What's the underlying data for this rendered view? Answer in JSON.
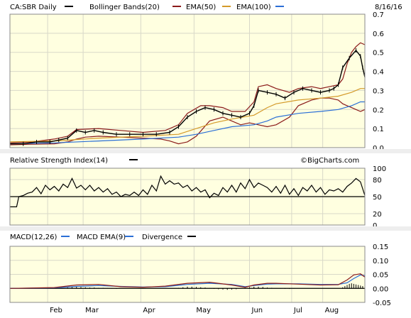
{
  "chart_data": [
    {
      "type": "line",
      "title": "CA:SBR Daily",
      "date_label": "8/16/16",
      "legend": [
        {
          "name": "Bollinger Bands(20)",
          "color": "#8b1a1a"
        },
        {
          "name": "EMA(50)",
          "color": "#d49a2a"
        },
        {
          "name": "EMA(100)",
          "color": "#2b6fd6"
        }
      ],
      "legend_swatches": {
        "price": "#000000"
      },
      "y_ticks": [
        "0.7",
        "0.6",
        "0.5",
        "0.4",
        "0.3",
        "0.2",
        "0.1",
        "0.0"
      ],
      "ylim": [
        0,
        0.7
      ],
      "x_ticks": [
        "Feb",
        "Mar",
        "Apr",
        "May",
        "Jun",
        "Jul",
        "Aug"
      ],
      "background": "#ffffe0",
      "series": [
        {
          "name": "CA:SBR",
          "color": "#000000",
          "x": [
            0,
            6,
            12,
            18,
            22,
            26,
            30,
            34,
            38,
            42,
            48,
            54,
            60,
            66,
            72,
            76,
            80,
            84,
            88,
            92,
            96,
            100,
            104,
            108,
            110,
            112,
            116,
            120,
            124,
            128,
            132,
            136,
            140,
            144,
            146,
            148,
            150,
            153,
            156,
            158,
            159,
            160
          ],
          "y": [
            0.02,
            0.02,
            0.03,
            0.03,
            0.04,
            0.05,
            0.09,
            0.08,
            0.09,
            0.08,
            0.07,
            0.07,
            0.07,
            0.07,
            0.08,
            0.11,
            0.16,
            0.19,
            0.21,
            0.2,
            0.18,
            0.17,
            0.16,
            0.18,
            0.22,
            0.3,
            0.29,
            0.28,
            0.26,
            0.29,
            0.31,
            0.3,
            0.29,
            0.3,
            0.31,
            0.33,
            0.42,
            0.47,
            0.51,
            0.48,
            0.42,
            0.37
          ]
        },
        {
          "name": "Bollinger Upper",
          "color": "#8b1a1a",
          "x": [
            0,
            10,
            20,
            26,
            30,
            40,
            50,
            60,
            70,
            76,
            80,
            86,
            90,
            96,
            100,
            106,
            110,
            112,
            116,
            120,
            126,
            130,
            136,
            140,
            144,
            148,
            150,
            152,
            154,
            156,
            158,
            160
          ],
          "y": [
            0.025,
            0.03,
            0.045,
            0.06,
            0.095,
            0.1,
            0.09,
            0.08,
            0.09,
            0.12,
            0.18,
            0.22,
            0.22,
            0.21,
            0.19,
            0.19,
            0.24,
            0.32,
            0.33,
            0.31,
            0.29,
            0.31,
            0.32,
            0.31,
            0.32,
            0.33,
            0.36,
            0.44,
            0.5,
            0.53,
            0.55,
            0.54
          ]
        },
        {
          "name": "Bollinger Lower",
          "color": "#8b1a1a",
          "x": [
            0,
            10,
            20,
            26,
            30,
            34,
            40,
            50,
            60,
            68,
            72,
            76,
            80,
            84,
            90,
            96,
            100,
            104,
            108,
            112,
            116,
            120,
            126,
            130,
            136,
            140,
            144,
            148,
            150,
            152,
            154,
            156,
            158,
            160
          ],
          "y": [
            0.015,
            0.018,
            0.02,
            0.03,
            0.045,
            0.055,
            0.06,
            0.055,
            0.05,
            0.045,
            0.035,
            0.02,
            0.03,
            0.06,
            0.14,
            0.16,
            0.14,
            0.12,
            0.13,
            0.12,
            0.11,
            0.12,
            0.16,
            0.22,
            0.25,
            0.26,
            0.26,
            0.25,
            0.23,
            0.22,
            0.21,
            0.2,
            0.19,
            0.2
          ]
        },
        {
          "name": "EMA(50)",
          "color": "#d49a2a",
          "x": [
            0,
            20,
            40,
            60,
            76,
            84,
            92,
            100,
            110,
            116,
            120,
            130,
            140,
            148,
            154,
            158,
            160
          ],
          "y": [
            0.03,
            0.035,
            0.05,
            0.06,
            0.07,
            0.1,
            0.13,
            0.15,
            0.17,
            0.21,
            0.23,
            0.25,
            0.26,
            0.27,
            0.29,
            0.31,
            0.31
          ]
        },
        {
          "name": "EMA(100)",
          "color": "#2b6fd6",
          "x": [
            0,
            20,
            40,
            60,
            76,
            84,
            92,
            100,
            110,
            116,
            120,
            130,
            140,
            148,
            154,
            158,
            160
          ],
          "y": [
            0.02,
            0.025,
            0.035,
            0.045,
            0.055,
            0.07,
            0.09,
            0.11,
            0.12,
            0.14,
            0.16,
            0.18,
            0.19,
            0.2,
            0.22,
            0.24,
            0.24
          ]
        }
      ]
    },
    {
      "type": "line",
      "title": "Relative Strength Index(14)",
      "watermark": "©BigCharts.com",
      "y_ticks": [
        "100",
        "80",
        "50",
        "20",
        "0"
      ],
      "ylim": [
        0,
        100
      ],
      "reference_line": 50,
      "series": [
        {
          "name": "RSI",
          "color": "#000000",
          "x": [
            0,
            3,
            4,
            6,
            8,
            10,
            12,
            14,
            16,
            18,
            20,
            22,
            24,
            26,
            28,
            30,
            32,
            34,
            36,
            38,
            40,
            42,
            44,
            46,
            48,
            50,
            52,
            54,
            56,
            58,
            60,
            62,
            64,
            66,
            68,
            70,
            72,
            74,
            76,
            78,
            80,
            82,
            84,
            86,
            88,
            90,
            92,
            94,
            96,
            98,
            100,
            102,
            104,
            106,
            108,
            110,
            112,
            114,
            116,
            118,
            120,
            122,
            124,
            126,
            128,
            130,
            132,
            134,
            136,
            138,
            140,
            142,
            144,
            146,
            148,
            150,
            152,
            154,
            156,
            158,
            160
          ],
          "y": [
            32,
            32,
            50,
            52,
            56,
            58,
            66,
            55,
            70,
            62,
            68,
            60,
            72,
            66,
            82,
            65,
            70,
            62,
            70,
            60,
            66,
            58,
            64,
            54,
            58,
            50,
            54,
            52,
            58,
            52,
            62,
            54,
            70,
            60,
            86,
            72,
            78,
            72,
            74,
            66,
            70,
            60,
            66,
            58,
            62,
            48,
            56,
            52,
            66,
            58,
            70,
            58,
            74,
            64,
            80,
            66,
            74,
            70,
            66,
            58,
            68,
            56,
            70,
            54,
            64,
            52,
            66,
            60,
            70,
            58,
            66,
            54,
            62,
            60,
            64,
            58,
            68,
            74,
            82,
            76,
            52
          ]
        }
      ]
    },
    {
      "type": "line",
      "title": "MACD(12,26)",
      "legend": [
        {
          "name": "MACD EMA(9)",
          "color": "#2b6fd6"
        },
        {
          "name": "Divergence",
          "color": "#8b1a1a"
        }
      ],
      "legend_swatches": {
        "macd": "#2b6fd6",
        "divergence_bars": "#000000"
      },
      "y_ticks": [
        "0.15",
        "0.10",
        "0.05",
        "0.00",
        "-0.05"
      ],
      "ylim": [
        -0.05,
        0.15
      ],
      "series": [
        {
          "name": "MACD EMA(9)",
          "color": "#2b6fd6",
          "x": [
            0,
            20,
            30,
            40,
            50,
            60,
            70,
            80,
            90,
            100,
            106,
            110,
            116,
            120,
            130,
            140,
            148,
            152,
            155,
            158,
            160
          ],
          "y": [
            0.0,
            0.002,
            0.007,
            0.01,
            0.007,
            0.005,
            0.006,
            0.014,
            0.018,
            0.014,
            0.006,
            0.01,
            0.015,
            0.016,
            0.016,
            0.014,
            0.014,
            0.02,
            0.035,
            0.048,
            0.045
          ]
        },
        {
          "name": "Divergence",
          "color": "#8b1a1a",
          "x": [
            0,
            20,
            30,
            40,
            50,
            60,
            70,
            80,
            90,
            100,
            106,
            110,
            116,
            120,
            130,
            140,
            148,
            152,
            155,
            158,
            160
          ],
          "y": [
            0.0,
            0.003,
            0.012,
            0.014,
            0.006,
            0.004,
            0.008,
            0.018,
            0.022,
            0.012,
            0.004,
            0.012,
            0.018,
            0.018,
            0.015,
            0.012,
            0.013,
            0.03,
            0.048,
            0.052,
            0.04
          ]
        }
      ],
      "bars": {
        "x": [
          26,
          28,
          30,
          32,
          34,
          36,
          38,
          40,
          42,
          44,
          46,
          48,
          76,
          78,
          80,
          82,
          84,
          86,
          88,
          90,
          92,
          94,
          96,
          98,
          100,
          102,
          104,
          106,
          108,
          110,
          112,
          114,
          116,
          118,
          120,
          122,
          124,
          126,
          128,
          150,
          151,
          152,
          153,
          154,
          155,
          156,
          157,
          158,
          159
        ],
        "y": [
          0.003,
          0.005,
          0.006,
          0.005,
          0.004,
          0.003,
          0.003,
          0.002,
          0.002,
          0.001,
          -0.001,
          -0.002,
          0.002,
          0.004,
          0.006,
          0.006,
          0.005,
          0.004,
          0.003,
          0.001,
          -0.002,
          -0.003,
          -0.004,
          -0.005,
          -0.004,
          -0.003,
          0.001,
          0.002,
          0.004,
          0.006,
          0.006,
          0.005,
          0.003,
          0.002,
          0.001,
          -0.001,
          -0.002,
          -0.002,
          -0.001,
          0.004,
          0.008,
          0.012,
          0.016,
          0.018,
          0.016,
          0.014,
          0.012,
          0.01,
          0.008
        ]
      }
    }
  ]
}
